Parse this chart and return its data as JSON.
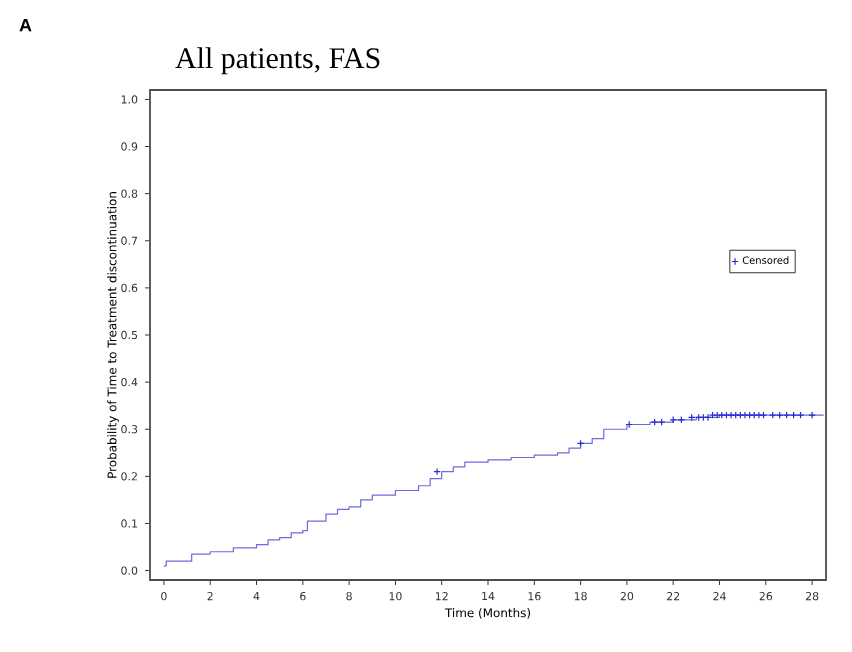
{
  "chart_data": {
    "type": "step",
    "title": "All patients, FAS",
    "xlabel": "Time (Months)",
    "ylabel": "Probability of Time to Treatment discontinuation",
    "annotations": [
      "A"
    ],
    "xlim": [
      -0.6,
      28.6
    ],
    "ylim": [
      -0.02,
      1.02
    ],
    "xticks": [
      0,
      2,
      4,
      6,
      8,
      10,
      12,
      14,
      16,
      18,
      20,
      22,
      24,
      26,
      28
    ],
    "yticks": [
      {
        "value": 0,
        "label": "0.0"
      },
      {
        "value": 0.1,
        "label": "0.1"
      },
      {
        "value": 0.2,
        "label": "0.2"
      },
      {
        "value": 0.3,
        "label": "0.3"
      },
      {
        "value": 0.4,
        "label": "0.4"
      },
      {
        "value": 0.5,
        "label": "0.5"
      },
      {
        "value": 0.6,
        "label": "0.6"
      },
      {
        "value": 0.7,
        "label": "0.7"
      },
      {
        "value": 0.8,
        "label": "0.8"
      },
      {
        "value": 0.9,
        "label": "0.9"
      },
      {
        "value": 1,
        "label": "1.0"
      }
    ],
    "grid": false,
    "legend": "right",
    "series": [
      {
        "color": "#6b6be0",
        "marker": "none",
        "x": [
          0,
          0.1,
          1,
          1.2,
          2,
          3,
          4,
          4.5,
          5,
          5.5,
          6,
          6.2,
          7,
          7.5,
          8,
          8.5,
          9,
          10,
          11,
          11.5,
          12,
          12.5,
          13,
          14,
          15,
          16,
          17,
          17.5,
          18,
          18.5,
          19,
          20,
          21,
          22,
          23,
          24,
          28.5
        ],
        "values": [
          0.01,
          0.02,
          0.02,
          0.035,
          0.04,
          0.048,
          0.055,
          0.065,
          0.07,
          0.08,
          0.085,
          0.105,
          0.12,
          0.13,
          0.135,
          0.15,
          0.16,
          0.17,
          0.18,
          0.195,
          0.21,
          0.22,
          0.23,
          0.235,
          0.24,
          0.245,
          0.25,
          0.26,
          0.27,
          0.28,
          0.3,
          0.31,
          0.315,
          0.32,
          0.325,
          0.33,
          0.33
        ]
      },
      {
        "type": "scatter",
        "name": "Censored",
        "color": "#2a2ad0",
        "marker": "cross",
        "x": [
          11.8,
          18,
          20.1,
          21.2,
          21.5,
          22.0,
          22.35,
          22.8,
          23.1,
          23.3,
          23.5,
          23.7,
          23.9,
          24.1,
          24.3,
          24.5,
          24.7,
          24.9,
          25.1,
          25.3,
          25.5,
          25.7,
          25.9,
          26.3,
          26.6,
          26.9,
          27.2,
          27.5,
          28
        ],
        "values": [
          0.21,
          0.27,
          0.31,
          0.315,
          0.315,
          0.32,
          0.32,
          0.325,
          0.325,
          0.325,
          0.325,
          0.33,
          0.33,
          0.33,
          0.33,
          0.33,
          0.33,
          0.33,
          0.33,
          0.33,
          0.33,
          0.33,
          0.33,
          0.33,
          0.33,
          0.33,
          0.33,
          0.33,
          0.33
        ]
      }
    ]
  }
}
